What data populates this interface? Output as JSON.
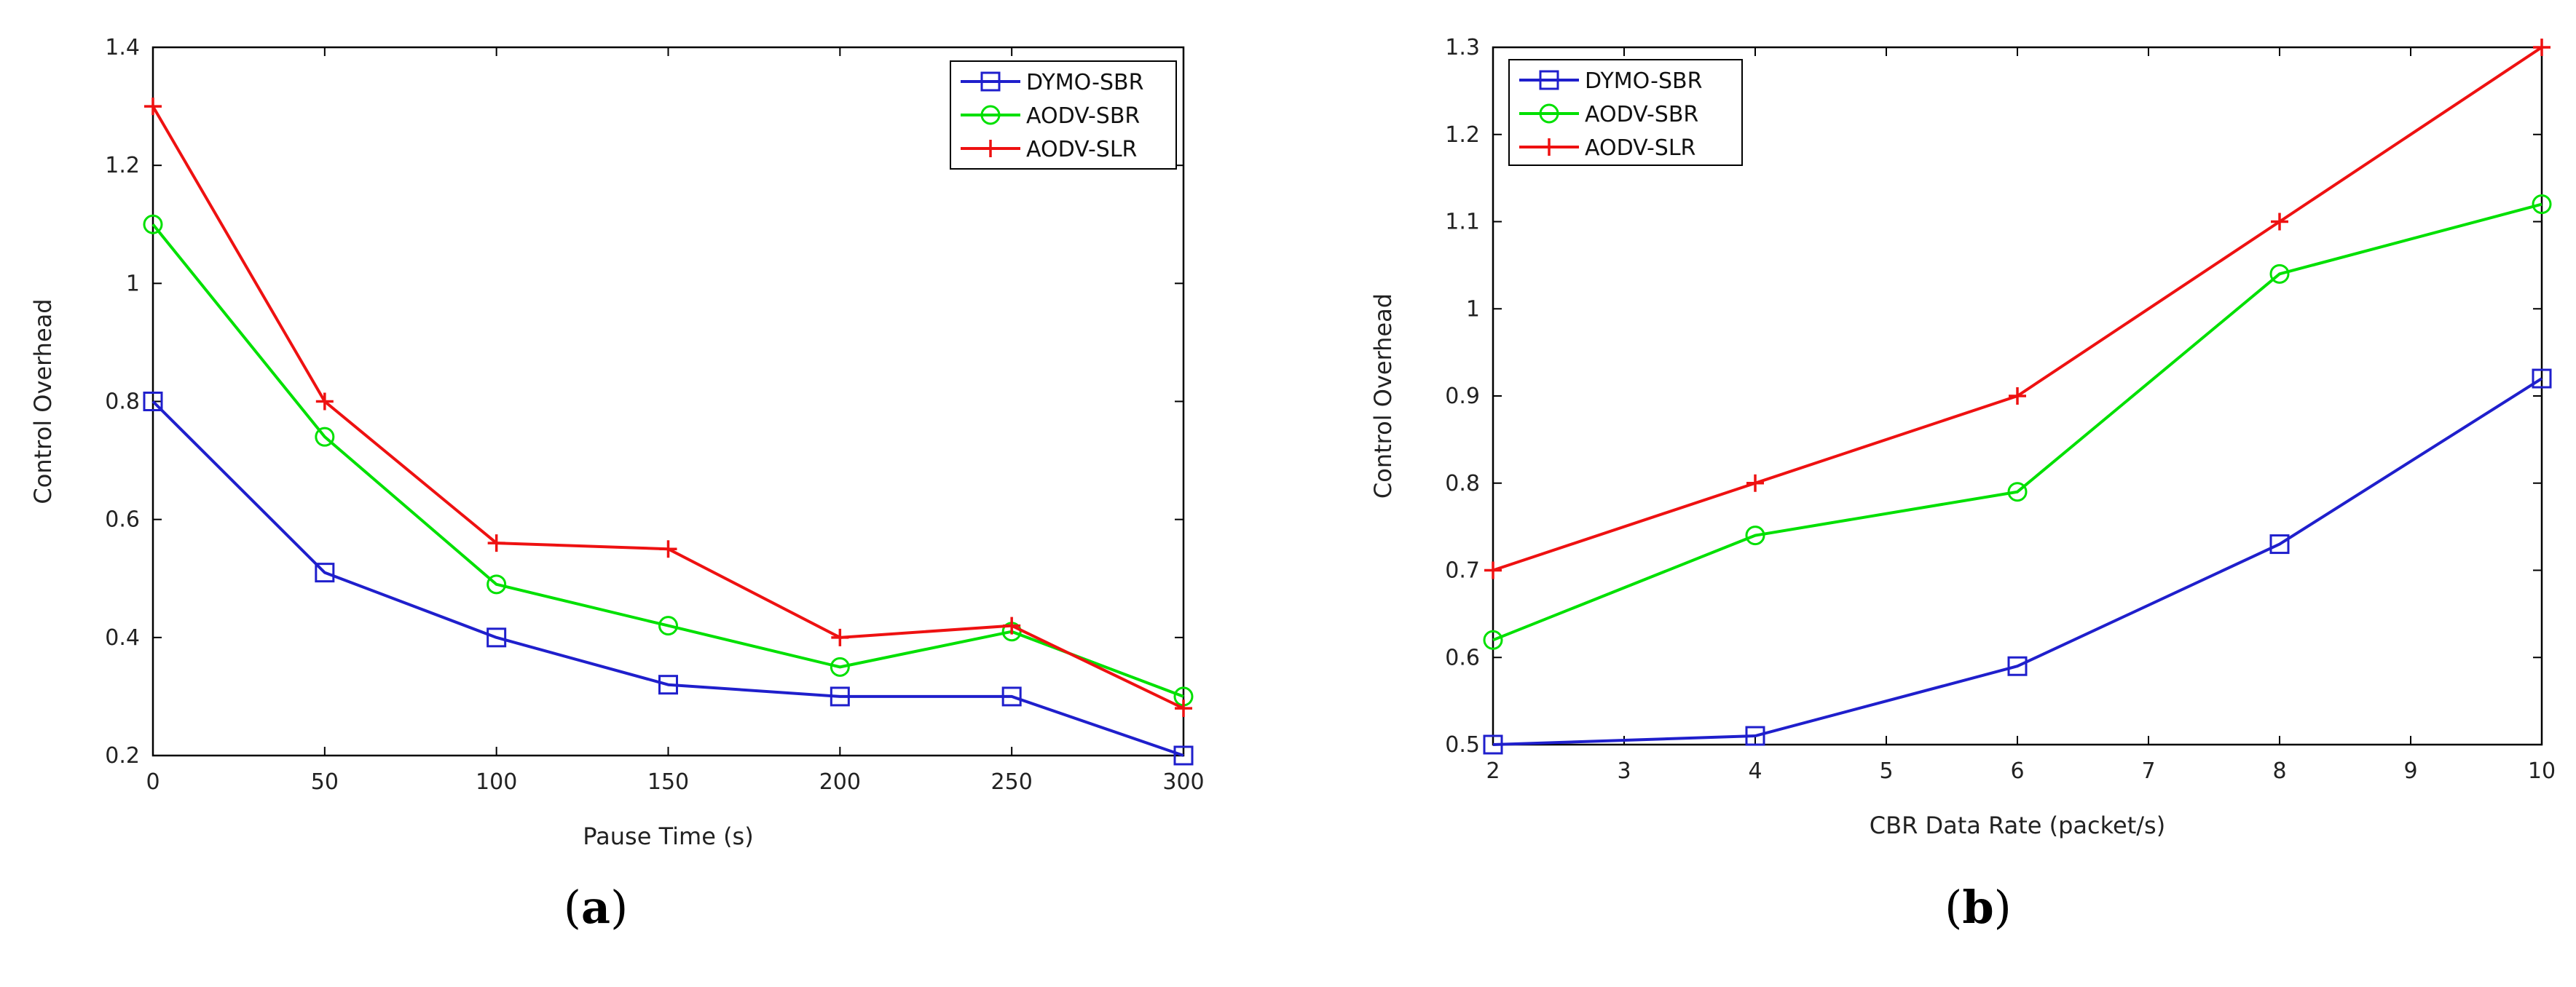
{
  "chart_data": [
    {
      "type": "line",
      "panel": "a",
      "caption_open": "(",
      "caption_letter": "a",
      "caption_close": ")",
      "xlabel": "Pause Time (s)",
      "ylabel": "Control Overhead",
      "xlim": [
        0,
        300
      ],
      "ylim": [
        0.2,
        1.4
      ],
      "xticks": [
        0,
        50,
        100,
        150,
        200,
        250,
        300
      ],
      "xtick_labels": [
        "0",
        "50",
        "100",
        "150",
        "200",
        "250",
        "300"
      ],
      "yticks": [
        0.2,
        0.4,
        0.6,
        0.8,
        1.0,
        1.2,
        1.4
      ],
      "ytick_labels": [
        "0.2",
        "0.4",
        "0.6",
        "0.8",
        "1",
        "1.2",
        "1.4"
      ],
      "legend_position": "top-right",
      "x": [
        0,
        50,
        100,
        150,
        200,
        250,
        300
      ],
      "series": [
        {
          "name": "DYMO-SBR",
          "color": "#1f1fcc",
          "marker": "square",
          "values": [
            0.8,
            0.51,
            0.4,
            0.32,
            0.3,
            0.3,
            0.2
          ]
        },
        {
          "name": "AODV-SBR",
          "color": "#00e000",
          "marker": "circle",
          "values": [
            1.1,
            0.74,
            0.49,
            0.42,
            0.35,
            0.41,
            0.3
          ]
        },
        {
          "name": "AODV-SLR",
          "color": "#ee1111",
          "marker": "plus",
          "values": [
            1.3,
            0.8,
            0.56,
            0.55,
            0.4,
            0.42,
            0.28
          ]
        }
      ]
    },
    {
      "type": "line",
      "panel": "b",
      "caption_open": "(",
      "caption_letter": "b",
      "caption_close": ")",
      "xlabel": "CBR Data Rate (packet/s)",
      "ylabel": "Control Overhead",
      "xlim": [
        2,
        10
      ],
      "ylim": [
        0.5,
        1.3
      ],
      "xticks": [
        2,
        3,
        4,
        5,
        6,
        7,
        8,
        9,
        10
      ],
      "xtick_labels": [
        "2",
        "3",
        "4",
        "5",
        "6",
        "7",
        "8",
        "9",
        "10"
      ],
      "yticks": [
        0.5,
        0.6,
        0.7,
        0.8,
        0.9,
        1.0,
        1.1,
        1.2,
        1.3
      ],
      "ytick_labels": [
        "0.5",
        "0.6",
        "0.7",
        "0.8",
        "0.9",
        "1",
        "1.1",
        "1.2",
        "1.3"
      ],
      "legend_position": "top-left",
      "x": [
        2,
        4,
        6,
        8,
        10
      ],
      "series": [
        {
          "name": "DYMO-SBR",
          "color": "#1f1fcc",
          "marker": "square",
          "values": [
            0.5,
            0.51,
            0.59,
            0.73,
            0.92
          ]
        },
        {
          "name": "AODV-SBR",
          "color": "#00e000",
          "marker": "circle",
          "values": [
            0.62,
            0.74,
            0.79,
            1.04,
            1.12
          ]
        },
        {
          "name": "AODV-SLR",
          "color": "#ee1111",
          "marker": "plus",
          "values": [
            0.7,
            0.8,
            0.9,
            1.1,
            1.3
          ]
        }
      ]
    }
  ]
}
